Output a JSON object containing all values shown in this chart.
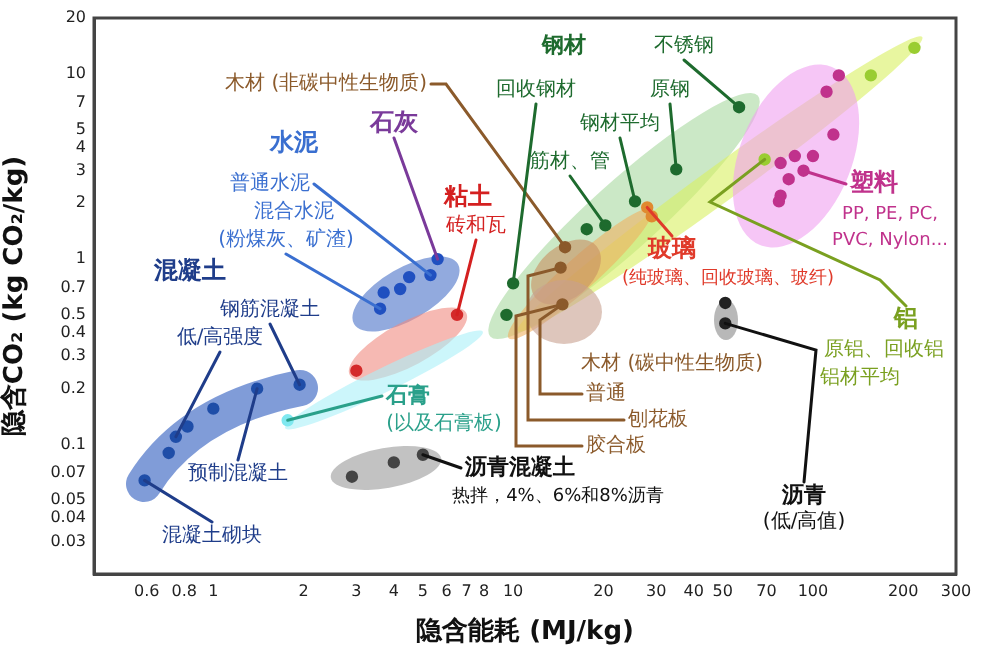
{
  "chart_data": {
    "type": "scatter",
    "xlabel": "隐含能耗 (MJ/kg)",
    "ylabel": "隐含CO₂ (kg CO₂/kg)",
    "log": "xy",
    "xlim": [
      0.4,
      300
    ],
    "ylim": [
      0.02,
      20
    ],
    "xticks": [
      0.6,
      0.8,
      1,
      2,
      3,
      4,
      5,
      6,
      7,
      8,
      10,
      20,
      30,
      40,
      50,
      70,
      100,
      200,
      300
    ],
    "yticks": [
      0.03,
      0.04,
      0.05,
      0.07,
      0.1,
      0.2,
      0.3,
      0.4,
      0.5,
      0.7,
      1,
      2,
      3,
      4,
      5,
      7,
      10,
      20
    ],
    "legend": false,
    "marker": "circle",
    "series": [
      {
        "color": "#1f4ea8",
        "x": [
          0.59,
          0.71,
          0.75,
          0.82,
          1.0,
          1.4,
          1.94
        ],
        "values": [
          0.064,
          0.09,
          0.11,
          0.125,
          0.156,
          0.2,
          0.21
        ]
      },
      {
        "color": "#2050c0",
        "x": [
          3.6,
          3.7,
          4.2,
          4.5,
          5.3,
          5.6
        ],
        "values": [
          0.54,
          0.66,
          0.69,
          0.8,
          0.82,
          1.0
        ]
      },
      {
        "color": "#d42a2a",
        "x": [
          3.0,
          6.5
        ],
        "values": [
          0.25,
          0.5
        ]
      },
      {
        "color": "#7fe8f0",
        "x": [
          1.77
        ],
        "values": [
          0.135
        ]
      },
      {
        "color": "#444444",
        "x": [
          2.9,
          4.0,
          5.0
        ],
        "values": [
          0.067,
          0.08,
          0.088
        ]
      },
      {
        "color": "#1e6b2e",
        "x": [
          56.7,
          35,
          25.5,
          20.3,
          17.6,
          10,
          9.5
        ],
        "values": [
          6.6,
          3.05,
          2.05,
          1.52,
          1.45,
          0.74,
          0.5
        ]
      },
      {
        "color": "#8b5a2b",
        "x": [
          14.9,
          14.4,
          14.6
        ],
        "values": [
          1.16,
          0.9,
          0.57
        ]
      },
      {
        "color": "#e08a30",
        "x": [
          28,
          29
        ],
        "values": [
          1.9,
          1.7
        ]
      },
      {
        "color": "#9acd32",
        "x": [
          69,
          156,
          218
        ],
        "values": [
          3.45,
          9.8,
          13.8
        ]
      },
      {
        "color": "#c0328c",
        "x": [
          78,
          87,
          100,
          93,
          83,
          78,
          77,
          117,
          111,
          122
        ],
        "values": [
          3.3,
          3.6,
          3.6,
          3.0,
          2.7,
          2.2,
          2.05,
          4.7,
          8.0,
          9.8
        ]
      },
      {
        "color": "#222222",
        "x": [
          51,
          51
        ],
        "values": [
          0.58,
          0.45
        ]
      }
    ],
    "annotations": [
      "混凝土",
      {
        "text": "钢筋混凝土",
        "x": 1.94,
        "y": 0.21
      },
      {
        "text": "低/高强度",
        "x": 0.75,
        "y": 0.11
      },
      {
        "text": "预制混凝土",
        "x": 1.4,
        "y": 0.2
      },
      {
        "text": "混凝土砌块",
        "x": 0.59,
        "y": 0.064
      },
      "水泥",
      {
        "text": "普通水泥",
        "x": 5.3,
        "y": 0.82
      },
      "混合水泥",
      {
        "text": "(粉煤灰、矿渣)",
        "x": 3.6,
        "y": 0.54
      },
      {
        "text": "石灰",
        "x": 5.6,
        "y": 1.0
      },
      "粘土",
      {
        "text": "砖和瓦",
        "x": 6.5,
        "y": 0.5
      },
      {
        "text": "石膏",
        "x": 1.77,
        "y": 0.135
      },
      "(以及石膏板)",
      {
        "text": "沥青混凝土",
        "x": 5.0,
        "y": 0.088
      },
      "热拌，4%、6%和8%沥青",
      {
        "text": "木材 (非碳中性生物质)",
        "x": 14.9,
        "y": 1.16
      },
      "钢材",
      {
        "text": "回收钢材",
        "x": 10,
        "y": 0.74
      },
      {
        "text": "不锈钢",
        "x": 56.7,
        "y": 6.6
      },
      {
        "text": "原钢",
        "x": 35,
        "y": 3.05
      },
      {
        "text": "钢材平均",
        "x": 25.5,
        "y": 2.05
      },
      {
        "text": "筋材、管",
        "x": 20.3,
        "y": 1.52
      },
      {
        "text": "玻璃",
        "x": 28,
        "y": 1.9
      },
      "(纯玻璃、回收玻璃、玻纤)",
      "木材 (碳中性生物质)",
      {
        "text": "普通",
        "x": 14.6,
        "y": 0.57
      },
      {
        "text": "刨花板",
        "x": 14.4,
        "y": 0.9
      },
      {
        "text": "胶合板",
        "x": 14.6,
        "y": 0.57
      },
      {
        "text": "塑料",
        "x": 93,
        "y": 3.0
      },
      "PP, PE, PC,",
      "PVC, Nylon...",
      {
        "text": "铝",
        "x": 69,
        "y": 3.45
      },
      "原铝、回收铝",
      "铝材平均",
      {
        "text": "沥青",
        "x": 51,
        "y": 0.45
      },
      "(低/高值)"
    ]
  }
}
